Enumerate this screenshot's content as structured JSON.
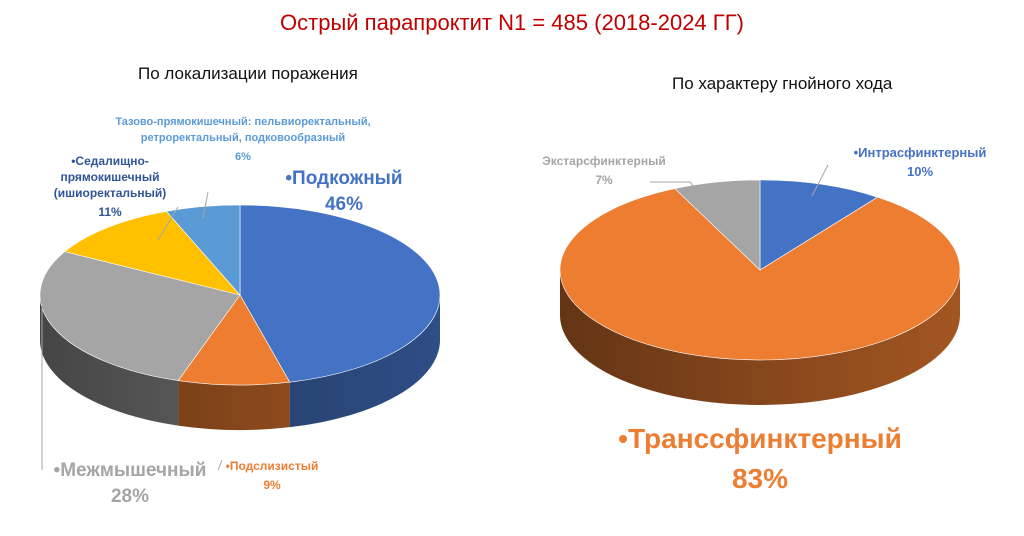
{
  "title": "Острый парапроктит N1 = 485 (2018-2024 ГГ)",
  "colors": {
    "title": "#C00000",
    "blue": "#4472C4",
    "orange": "#ED7D31",
    "gray": "#A5A5A5",
    "yellow": "#FFC000",
    "lightblue": "#5B9BD5"
  },
  "chart_data": [
    {
      "type": "pie",
      "title": "По локализации поражения",
      "unit": "%",
      "slices": [
        {
          "label": "Подкожный",
          "value": 46,
          "color": "#4472C4"
        },
        {
          "label": "Подслизистый",
          "value": 9,
          "color": "#ED7D31"
        },
        {
          "label": "Межмышечный",
          "value": 28,
          "color": "#A5A5A5"
        },
        {
          "label": "Седалищно-прямокишечный (ишиоректальный)",
          "value": 11,
          "color": "#FFC000"
        },
        {
          "label": "Тазово-прямокишечный: пельвиоректальный, ретроректальный, подковообразный",
          "value": 6,
          "color": "#5B9BD5"
        }
      ]
    },
    {
      "type": "pie",
      "title": "По характеру гнойного хода",
      "unit": "%",
      "slices": [
        {
          "label": "Интрасфинктерный",
          "value": 10,
          "color": "#4472C4"
        },
        {
          "label": "Транссфинктерный",
          "value": 83,
          "color": "#ED7D31"
        },
        {
          "label": "Экстарсфинктерный",
          "value": 7,
          "color": "#A5A5A5"
        }
      ]
    }
  ],
  "labels": {
    "left": [
      {
        "lines": [
          "•Подкожный"
        ],
        "value": "46%"
      },
      {
        "lines": [
          "•Подслизистый"
        ],
        "value": "9%"
      },
      {
        "lines": [
          "•Межмышечный"
        ],
        "value": "28%"
      },
      {
        "lines": [
          "•Седалищно-",
          "прямокишечный",
          "(ишиоректальный)"
        ],
        "value": "11%"
      },
      {
        "lines": [
          "Тазово-прямокишечный: пельвиоректальный,",
          "ретроректальный, подковообразный"
        ],
        "value": "6%"
      }
    ],
    "right": [
      {
        "lines": [
          "•Интрасфинктерный"
        ],
        "value": "10%"
      },
      {
        "lines": [
          "•Транссфинктерный"
        ],
        "value": "83%"
      },
      {
        "lines": [
          "Экстарсфинктерный"
        ],
        "value": "7%"
      }
    ]
  }
}
